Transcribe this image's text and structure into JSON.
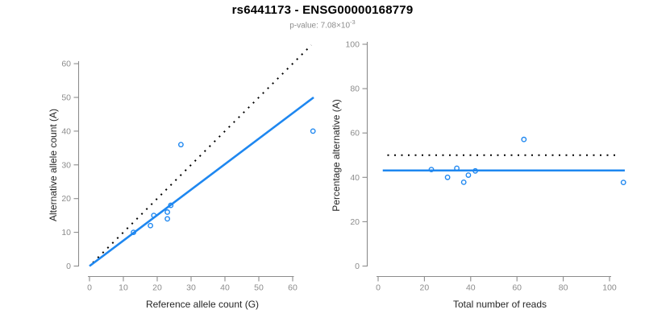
{
  "header": {
    "title": "rs6441173 - ENSG00000168779",
    "subtitle_base": "p-value: 7.08×10",
    "subtitle_exponent": "-3"
  },
  "colors": {
    "point_blue": "#1E87F0",
    "line_blue": "#1E87F0",
    "dotted_black": "#000000",
    "axis_gray": "#8C8C8C",
    "tick_label_gray": "#8C8C8C",
    "axis_title_dark": "#262626"
  },
  "chart_data": [
    {
      "type": "scatter",
      "name": "allele-counts",
      "xlabel": "Reference allele count (G)",
      "ylabel": "Alternative allele count (A)",
      "xlim": [
        0,
        66
      ],
      "ylim": [
        0,
        66
      ],
      "xticks": [
        0,
        10,
        20,
        30,
        40,
        50,
        60
      ],
      "yticks": [
        0,
        10,
        20,
        30,
        40,
        50,
        60
      ],
      "grid": false,
      "points": [
        [
          13,
          10
        ],
        [
          18,
          12
        ],
        [
          19,
          15
        ],
        [
          23,
          14
        ],
        [
          23,
          16
        ],
        [
          24,
          18
        ],
        [
          27,
          36
        ],
        [
          66,
          40
        ]
      ],
      "lines": [
        {
          "name": "identity-line",
          "style": "dotted",
          "color": "#000000",
          "x1": 1,
          "y1": 1,
          "x2": 65.5,
          "y2": 65.5
        },
        {
          "name": "regression-line",
          "style": "solid",
          "color": "#1E87F0",
          "x1": 0,
          "y1": 0,
          "x2": 66.2,
          "y2": 50
        }
      ]
    },
    {
      "type": "scatter",
      "name": "percentage-alternative",
      "xlabel": "Total number of reads",
      "ylabel": "Percentage alternative (A)",
      "xlim": [
        0,
        107
      ],
      "ylim": [
        0,
        100
      ],
      "xticks": [
        0,
        20,
        40,
        60,
        80,
        100
      ],
      "yticks": [
        0,
        20,
        40,
        60,
        80,
        100
      ],
      "grid": false,
      "points": [
        [
          23,
          43.5
        ],
        [
          30,
          40
        ],
        [
          34,
          44.1
        ],
        [
          37,
          37.8
        ],
        [
          39,
          41
        ],
        [
          42,
          42.9
        ],
        [
          63,
          57.1
        ],
        [
          106,
          37.7
        ]
      ],
      "lines": [
        {
          "name": "fifty-percent-line",
          "style": "dotted",
          "color": "#000000",
          "x1": 4,
          "y1": 50,
          "x2": 104.3,
          "y2": 50
        },
        {
          "name": "mean-percentage-line",
          "style": "solid",
          "color": "#1E87F0",
          "x1": 2,
          "y1": 43.1,
          "x2": 106.6,
          "y2": 43.1
        }
      ]
    }
  ]
}
